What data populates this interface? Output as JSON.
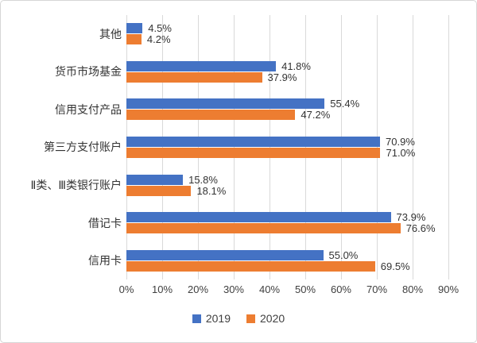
{
  "chart_data": {
    "type": "bar",
    "orientation": "horizontal",
    "title": "",
    "categories_top_to_bottom": [
      "其他",
      "货币市场基金",
      "信用支付产品",
      "第三方支付账户",
      "Ⅱ类、Ⅲ类银行账户",
      "借记卡",
      "信用卡"
    ],
    "series": [
      {
        "name": "2019",
        "color": "#4472C4",
        "values": [
          4.5,
          41.8,
          55.4,
          70.9,
          15.8,
          73.9,
          55.0
        ],
        "labels": [
          "4.5%",
          "41.8%",
          "55.4%",
          "70.9%",
          "15.8%",
          "73.9%",
          "55.0%"
        ]
      },
      {
        "name": "2020",
        "color": "#ED7D31",
        "values": [
          4.2,
          37.9,
          47.2,
          71.0,
          18.1,
          76.6,
          69.5
        ],
        "labels": [
          "4.2%",
          "37.9%",
          "47.2%",
          "71.0%",
          "18.1%",
          "76.6%",
          "69.5%"
        ]
      }
    ],
    "x_axis": {
      "min": 0,
      "max": 90,
      "tick_labels": [
        "0%",
        "10%",
        "20%",
        "30%",
        "40%",
        "50%",
        "60%",
        "70%",
        "80%",
        "90%"
      ]
    },
    "grid": true,
    "legend_position": "bottom",
    "legend": [
      {
        "label": "2019",
        "color": "#4472C4"
      },
      {
        "label": "2020",
        "color": "#ED7D31"
      }
    ]
  },
  "colors": {
    "gridline": "#d9d9d9",
    "frame_border": "#d6d6d6",
    "text": "#3b3b3b",
    "background": "#ffffff"
  }
}
